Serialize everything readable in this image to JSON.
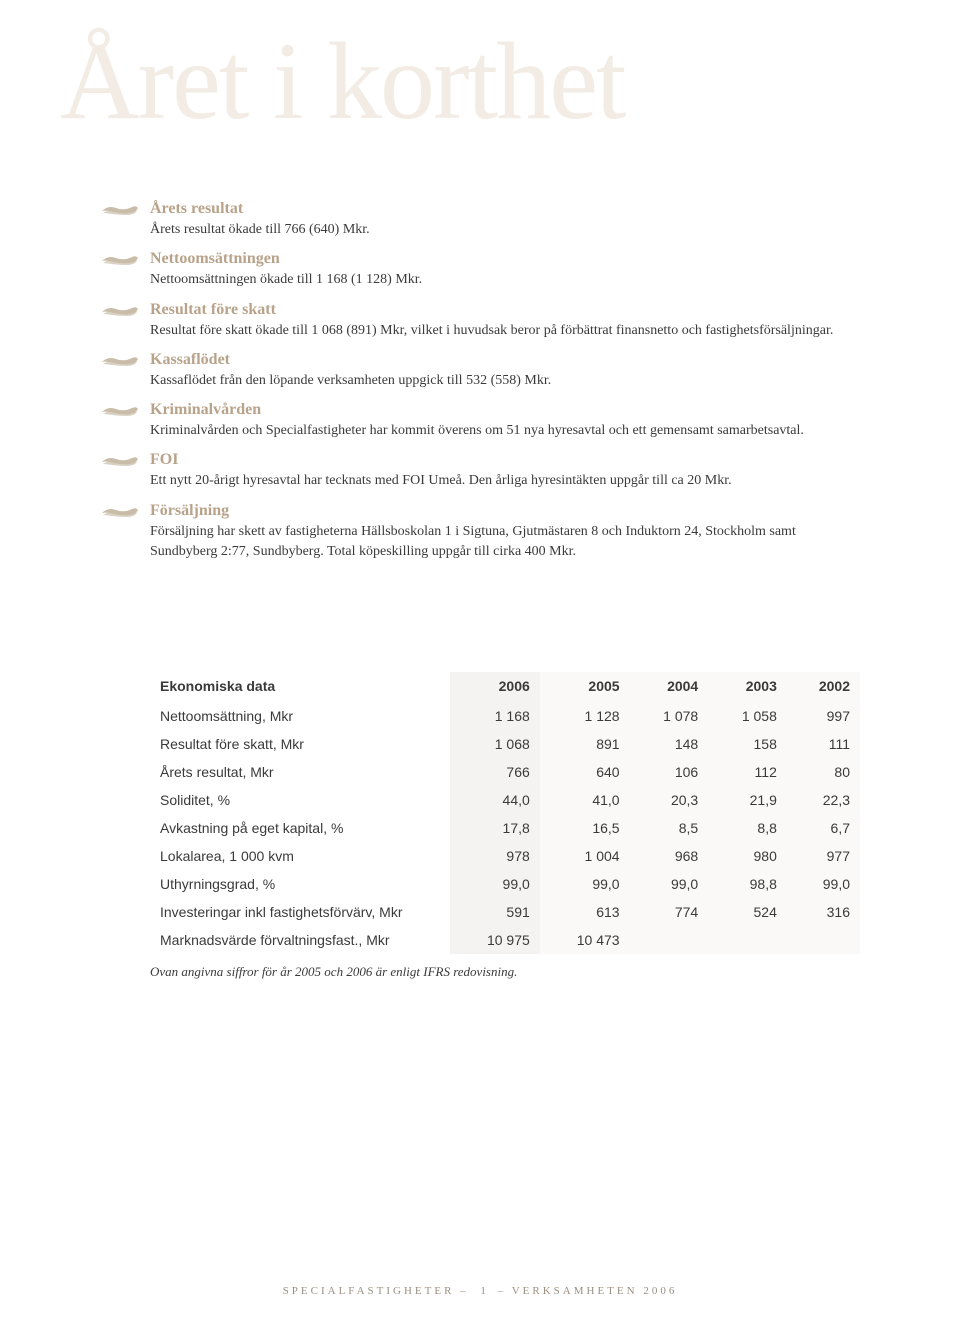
{
  "watermark": "Året i korthet",
  "bullets": [
    {
      "heading": "Årets resultat",
      "body": "Årets resultat ökade till 766 (640) Mkr."
    },
    {
      "heading": "Nettoomsättningen",
      "body": "Nettoomsättningen ökade till 1 168 (1 128) Mkr."
    },
    {
      "heading": "Resultat före skatt",
      "body": "Resultat före skatt ökade till 1 068 (891) Mkr, vilket i huvudsak beror på förbättrat finansnetto och fastighetsförsäljningar."
    },
    {
      "heading": "Kassaflödet",
      "body": "Kassaflödet från den löpande verksamheten uppgick till 532 (558) Mkr."
    },
    {
      "heading": "Kriminalvården",
      "body": "Kriminalvården och Specialfastigheter har kommit överens om 51 nya hyresavtal och ett gemensamt samarbetsavtal."
    },
    {
      "heading": "FOI",
      "body": "Ett nytt 20-årigt hyresavtal har tecknats med FOI Umeå. Den årliga hyresintäkten uppgår till ca 20 Mkr."
    },
    {
      "heading": "Försäljning",
      "body": "Försäljning har skett av fastigheterna Hällsboskolan 1 i Sigtuna, Gjutmästaren 8 och Induktorn 24, Stockholm samt Sundbyberg 2:77, Sundbyberg. Total köpeskilling uppgår till cirka 400 Mkr."
    }
  ],
  "table": {
    "title": "Ekonomiska data",
    "years": [
      "2006",
      "2005",
      "2004",
      "2003",
      "2002"
    ],
    "rows": [
      {
        "label": "Nettoomsättning, Mkr",
        "v": [
          "1 168",
          "1 128",
          "1 078",
          "1 058",
          "997"
        ]
      },
      {
        "label": "Resultat före skatt, Mkr",
        "v": [
          "1 068",
          "891",
          "148",
          "158",
          "111"
        ]
      },
      {
        "label": "Årets resultat, Mkr",
        "v": [
          "766",
          "640",
          "106",
          "112",
          "80"
        ]
      },
      {
        "label": "Soliditet, %",
        "v": [
          "44,0",
          "41,0",
          "20,3",
          "21,9",
          "22,3"
        ]
      },
      {
        "label": "Avkastning på eget kapital, %",
        "v": [
          "17,8",
          "16,5",
          "8,5",
          "8,8",
          "6,7"
        ]
      },
      {
        "label": "Lokalarea, 1 000 kvm",
        "v": [
          "978",
          "1 004",
          "968",
          "980",
          "977"
        ]
      },
      {
        "label": "Uthyrningsgrad, %",
        "v": [
          "99,0",
          "99,0",
          "99,0",
          "98,8",
          "99,0"
        ]
      },
      {
        "label": "Investeringar inkl fastighetsförvärv, Mkr",
        "v": [
          "591",
          "613",
          "774",
          "524",
          "316"
        ]
      },
      {
        "label": "Marknadsvärde förvaltningsfast., Mkr",
        "v": [
          "10 975",
          "10 473",
          "",
          "",
          ""
        ]
      }
    ],
    "footnote": "Ovan angivna siffror för år 2005 och 2006 är enligt IFRS redovisning."
  },
  "footer": {
    "left": "specialfastigheter",
    "page": "1",
    "right": "verksamheten 2006"
  },
  "style": {
    "heading_color": "#b8a38a",
    "body_color": "#3a3a3a",
    "watermark_color": "#f2ece5",
    "icon_fill": "#c9bda9",
    "highlight_col_bg": "#f4f3f1",
    "other_col_bg": "#faf9f8"
  }
}
